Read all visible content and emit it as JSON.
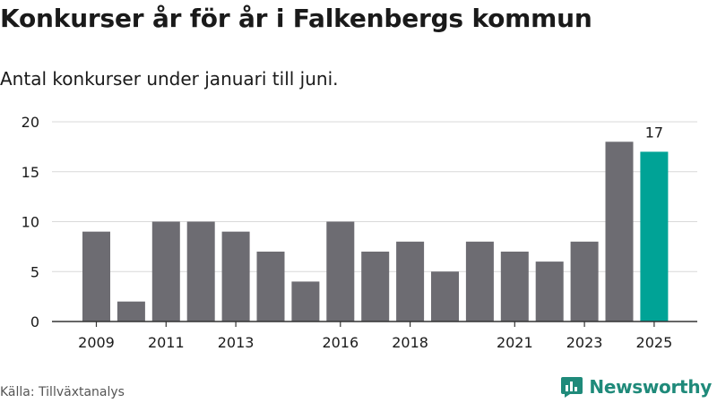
{
  "title": "Konkurser år för år i Falkenbergs kommun",
  "subtitle": "Antal konkurser under januari till juni.",
  "source": "Källa: Tillväxtanalys",
  "brand": {
    "name": "Newsworthy",
    "color": "#1f8a7a"
  },
  "chart_data": {
    "type": "bar",
    "categories": [
      "2009",
      "2010",
      "2011",
      "2012",
      "2013",
      "2014",
      "2015",
      "2016",
      "2017",
      "2018",
      "2019",
      "2020",
      "2021",
      "2022",
      "2023",
      "2024",
      "2025"
    ],
    "x_tick_labels": [
      "2009",
      "2011",
      "2013",
      "2016",
      "2018",
      "2021",
      "2023",
      "2025"
    ],
    "series": [
      {
        "values": [
          9,
          2,
          10,
          10,
          9,
          7,
          4,
          10,
          7,
          8,
          5,
          8,
          7,
          6,
          8,
          18,
          17
        ]
      }
    ],
    "ylim": [
      0,
      20
    ],
    "yticks": [
      0,
      5,
      10,
      15,
      20
    ],
    "grid": true,
    "colors": {
      "bar": "#6d6c72",
      "highlight": "#00a396",
      "grid": "#d9d9d9",
      "axis": "#333333"
    },
    "highlight_index": 16,
    "annotations": [
      {
        "category": "2025",
        "label": "17"
      }
    ]
  }
}
